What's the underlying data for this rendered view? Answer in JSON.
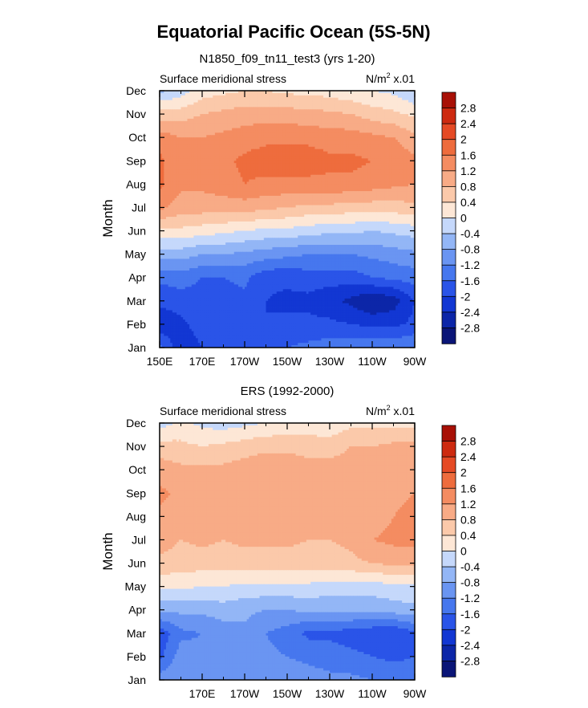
{
  "page": {
    "title": "Equatorial Pacific Ocean (5S-5N)"
  },
  "chart_data": [
    {
      "type": "heatmap",
      "subtitle": "N1850_f09_tn11_test3 (yrs 1-20)",
      "left_label": "Surface meridional stress",
      "units_label": "N/m",
      "units_sup": "2",
      "units_suffix": " x.01",
      "ylabel": "Month",
      "y_ticks": [
        "Jan",
        "Feb",
        "Mar",
        "Apr",
        "May",
        "Jun",
        "Jul",
        "Aug",
        "Sep",
        "Oct",
        "Nov",
        "Dec"
      ],
      "x_ticks": [
        "150E",
        "170E",
        "170W",
        "150W",
        "130W",
        "110W",
        "90W"
      ],
      "x_tick_lon": [
        150,
        170,
        190,
        210,
        230,
        250,
        270
      ],
      "xlim": [
        150,
        270
      ],
      "lon": [
        150,
        160,
        170,
        180,
        190,
        200,
        210,
        220,
        230,
        240,
        250,
        260,
        270
      ],
      "value_grid": [
        [
          -1.5,
          -2.3,
          -2.0,
          -1.9,
          -1.6,
          -1.6,
          -1.6,
          -1.5,
          -1.4,
          -1.3,
          -1.3,
          -1.3,
          -1.2
        ],
        [
          -2.3,
          -2.1,
          -1.8,
          -1.8,
          -1.8,
          -2.0,
          -1.9,
          -1.9,
          -1.9,
          -2.0,
          -2.1,
          -2.1,
          -1.9
        ],
        [
          -1.9,
          -1.8,
          -1.8,
          -1.8,
          -1.7,
          -2.0,
          -2.1,
          -2.1,
          -2.3,
          -2.5,
          -2.8,
          -2.6,
          -2.0
        ],
        [
          -1.5,
          -1.4,
          -1.6,
          -1.6,
          -1.5,
          -1.9,
          -1.9,
          -1.8,
          -1.8,
          -1.8,
          -1.6,
          -1.5,
          -1.4
        ],
        [
          -0.6,
          -0.6,
          -0.8,
          -0.8,
          -0.9,
          -1.0,
          -1.1,
          -1.2,
          -1.2,
          -1.2,
          -1.1,
          -1.0,
          -0.9
        ],
        [
          0.3,
          0.3,
          0.2,
          0.1,
          0.0,
          -0.1,
          -0.1,
          -0.2,
          -0.3,
          -0.3,
          -0.4,
          -0.3,
          -0.2
        ],
        [
          1.3,
          1.0,
          1.0,
          1.0,
          1.0,
          0.9,
          0.8,
          0.7,
          0.7,
          0.6,
          0.6,
          0.6,
          0.7
        ],
        [
          1.7,
          1.3,
          1.3,
          1.4,
          1.6,
          1.5,
          1.5,
          1.5,
          1.5,
          1.5,
          1.4,
          1.3,
          1.2
        ],
        [
          1.7,
          1.3,
          1.3,
          1.5,
          1.7,
          1.8,
          1.8,
          1.8,
          1.7,
          1.7,
          1.6,
          1.5,
          1.3
        ],
        [
          1.4,
          1.2,
          1.2,
          1.3,
          1.4,
          1.5,
          1.5,
          1.5,
          1.4,
          1.4,
          1.3,
          1.2,
          0.9
        ],
        [
          0.6,
          0.6,
          0.8,
          0.9,
          1.0,
          1.0,
          1.0,
          0.9,
          0.9,
          0.8,
          0.6,
          0.5,
          0.3
        ],
        [
          -0.5,
          -0.2,
          0.2,
          0.3,
          0.4,
          0.4,
          0.3,
          0.3,
          0.2,
          0.1,
          0.0,
          -0.1,
          -0.4
        ]
      ],
      "levels": [
        -2.8,
        -2.4,
        -2,
        -1.6,
        -1.2,
        -0.8,
        -0.4,
        0,
        0.4,
        0.8,
        1.2,
        1.6,
        2,
        2.4,
        2.8
      ],
      "colorbar_labels": [
        "2.8",
        "2.4",
        "2",
        "1.6",
        "1.2",
        "0.8",
        "0.4",
        "0",
        "-0.4",
        "-0.8",
        "-1.2",
        "-1.6",
        "-2",
        "-2.4",
        "-2.8"
      ],
      "colors": [
        "#0a1577",
        "#0c26a8",
        "#1237d3",
        "#2a54e8",
        "#4677ee",
        "#6a95f2",
        "#93b6f6",
        "#c5d8fb",
        "#fde7d6",
        "#fbc9aa",
        "#f8ab86",
        "#f48c61",
        "#ee6c3d",
        "#e54a25",
        "#cd2a10",
        "#a81006"
      ]
    },
    {
      "type": "heatmap",
      "subtitle": "ERS (1992-2000)",
      "left_label": "Surface meridional stress",
      "units_label": "N/m",
      "units_sup": "2",
      "units_suffix": " x.01",
      "ylabel": "Month",
      "y_ticks": [
        "Jan",
        "Feb",
        "Mar",
        "Apr",
        "May",
        "Jun",
        "Jul",
        "Aug",
        "Sep",
        "Oct",
        "Nov",
        "Dec"
      ],
      "x_ticks": [
        "170E",
        "170W",
        "150W",
        "130W",
        "110W",
        "90W"
      ],
      "x_tick_lon": [
        170,
        190,
        210,
        230,
        250,
        270
      ],
      "xlim": [
        150,
        270
      ],
      "lon": [
        150,
        160,
        170,
        180,
        190,
        200,
        210,
        220,
        230,
        240,
        250,
        260,
        270
      ],
      "value_grid": [
        [
          -1.0,
          -0.9,
          -0.9,
          -0.8,
          -0.9,
          -0.9,
          -1.0,
          -1.0,
          -1.1,
          -1.1,
          -1.2,
          -1.3,
          -1.3
        ],
        [
          -1.7,
          -1.0,
          -1.1,
          -0.9,
          -1.0,
          -1.1,
          -1.2,
          -1.3,
          -1.4,
          -1.5,
          -1.6,
          -1.7,
          -1.6
        ],
        [
          -1.9,
          -1.3,
          -1.2,
          -1.0,
          -0.9,
          -1.2,
          -1.4,
          -1.7,
          -1.7,
          -1.8,
          -1.9,
          -2.0,
          -1.7
        ],
        [
          -0.7,
          -0.7,
          -0.7,
          -0.6,
          -0.7,
          -0.8,
          -0.8,
          -0.7,
          -0.7,
          -0.7,
          -0.7,
          -0.6,
          -0.5
        ],
        [
          0.1,
          0.1,
          0.0,
          0.0,
          -0.1,
          -0.1,
          -0.1,
          -0.1,
          -0.2,
          -0.2,
          -0.2,
          -0.1,
          -0.1
        ],
        [
          0.7,
          0.6,
          0.6,
          0.6,
          0.6,
          0.6,
          0.6,
          0.6,
          0.6,
          0.7,
          0.8,
          0.9,
          0.9
        ],
        [
          1.0,
          0.8,
          0.9,
          0.8,
          0.9,
          0.9,
          0.9,
          0.8,
          0.8,
          0.9,
          1.2,
          1.3,
          1.3
        ],
        [
          1.1,
          1.0,
          1.0,
          1.0,
          1.1,
          1.1,
          1.0,
          1.0,
          0.9,
          1.0,
          1.0,
          1.2,
          1.3
        ],
        [
          1.3,
          1.1,
          1.0,
          1.0,
          1.0,
          1.1,
          1.1,
          1.0,
          1.0,
          1.1,
          1.0,
          1.1,
          1.2
        ],
        [
          1.0,
          0.9,
          0.9,
          0.9,
          1.0,
          1.1,
          1.1,
          1.0,
          1.0,
          1.0,
          0.9,
          1.0,
          1.2
        ],
        [
          0.6,
          0.5,
          0.4,
          0.5,
          0.6,
          0.7,
          0.7,
          0.6,
          0.6,
          0.8,
          0.8,
          0.9,
          0.9
        ],
        [
          -0.2,
          0.1,
          -0.1,
          -0.2,
          -0.1,
          0.0,
          0.1,
          0.2,
          0.1,
          0.3,
          0.3,
          0.3,
          0.3
        ]
      ],
      "levels": [
        -2.8,
        -2.4,
        -2,
        -1.6,
        -1.2,
        -0.8,
        -0.4,
        0,
        0.4,
        0.8,
        1.2,
        1.6,
        2,
        2.4,
        2.8
      ],
      "colorbar_labels": [
        "2.8",
        "2.4",
        "2",
        "1.6",
        "1.2",
        "0.8",
        "0.4",
        "0",
        "-0.4",
        "-0.8",
        "-1.2",
        "-1.6",
        "-2",
        "-2.4",
        "-2.8"
      ],
      "colors": [
        "#0a1577",
        "#0c26a8",
        "#1237d3",
        "#2a54e8",
        "#4677ee",
        "#6a95f2",
        "#93b6f6",
        "#c5d8fb",
        "#fde7d6",
        "#fbc9aa",
        "#f8ab86",
        "#f48c61",
        "#ee6c3d",
        "#e54a25",
        "#cd2a10",
        "#a81006"
      ]
    }
  ]
}
